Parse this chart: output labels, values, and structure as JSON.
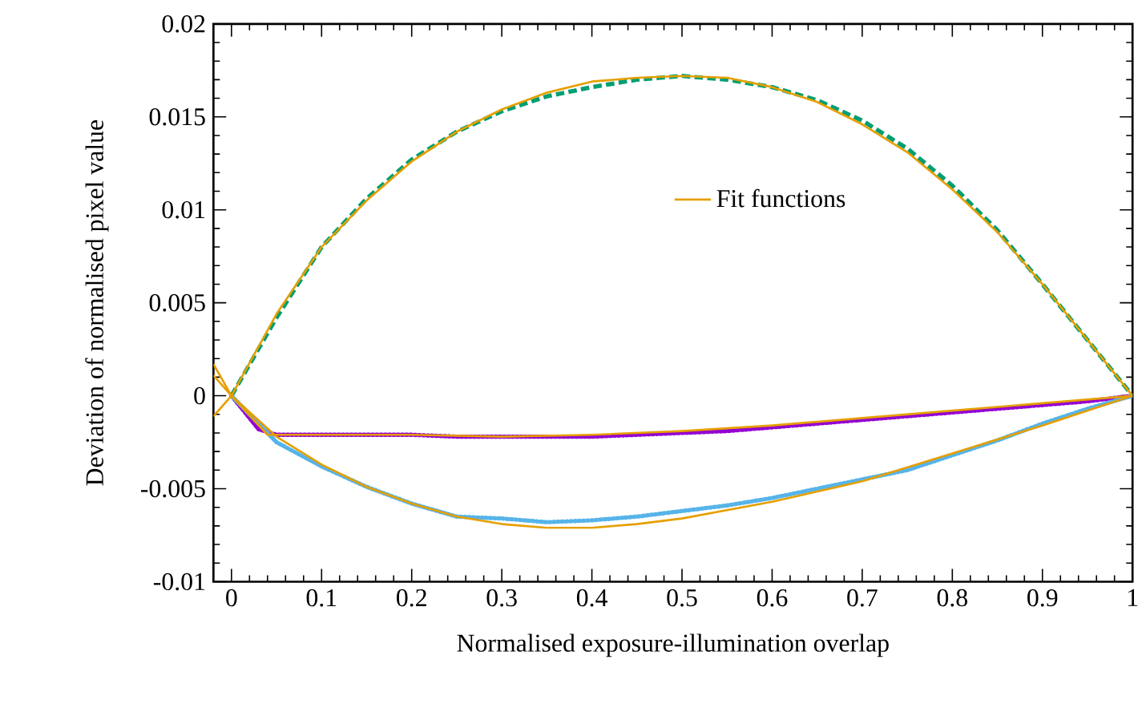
{
  "chart_data": {
    "type": "line",
    "xlabel": "Normalised exposure-illumination overlap",
    "ylabel": "Deviation of normalised pixel value",
    "xlim": [
      -0.02,
      1
    ],
    "ylim": [
      -0.01,
      0.02
    ],
    "xticks": [
      0,
      0.1,
      0.2,
      0.3,
      0.4,
      0.5,
      0.6,
      0.7,
      0.8,
      0.9,
      1
    ],
    "yticks": [
      -0.01,
      -0.005,
      0,
      0.005,
      0.01,
      0.015,
      0.02
    ],
    "grid": false,
    "legend": "right",
    "marker": "none",
    "series": [
      {
        "color": "#9400d3",
        "line_style": "dotted",
        "x": [
          0,
          0.03,
          0.05,
          0.1,
          0.15,
          0.2,
          0.25,
          0.3,
          0.35,
          0.4,
          0.45,
          0.5,
          0.55,
          0.6,
          0.65,
          0.7,
          0.75,
          0.8,
          0.85,
          0.9,
          0.95,
          1
        ],
        "values": [
          0,
          -0.0018,
          -0.0021,
          -0.0021,
          -0.0021,
          -0.0021,
          -0.0022,
          -0.0022,
          -0.0022,
          -0.0022,
          -0.0021,
          -0.002,
          -0.0019,
          -0.0017,
          -0.0015,
          -0.0013,
          -0.0011,
          -0.0009,
          -0.0007,
          -0.0005,
          -0.0003,
          0
        ]
      },
      {
        "color": "#009e73",
        "line_style": "dashed",
        "x": [
          0,
          0.05,
          0.1,
          0.15,
          0.2,
          0.25,
          0.3,
          0.35,
          0.4,
          0.45,
          0.5,
          0.55,
          0.6,
          0.65,
          0.7,
          0.75,
          0.8,
          0.85,
          0.9,
          0.95,
          1
        ],
        "values": [
          0,
          0.0042,
          0.008,
          0.0106,
          0.0127,
          0.0142,
          0.0153,
          0.0161,
          0.0166,
          0.017,
          0.0172,
          0.017,
          0.0166,
          0.0159,
          0.0148,
          0.0133,
          0.0113,
          0.0089,
          0.006,
          0.003,
          0
        ]
      },
      {
        "color": "#56b4e9",
        "line_style": "dotted",
        "x": [
          0,
          0.03,
          0.05,
          0.1,
          0.15,
          0.2,
          0.25,
          0.3,
          0.35,
          0.4,
          0.45,
          0.5,
          0.55,
          0.6,
          0.65,
          0.7,
          0.75,
          0.8,
          0.85,
          0.9,
          0.95,
          1
        ],
        "values": [
          0,
          -0.0015,
          -0.0025,
          -0.0038,
          -0.0049,
          -0.0058,
          -0.0065,
          -0.0066,
          -0.0068,
          -0.0067,
          -0.0065,
          -0.0062,
          -0.0059,
          -0.0055,
          -0.005,
          -0.0045,
          -0.004,
          -0.0032,
          -0.0024,
          -0.0015,
          -0.0007,
          0
        ]
      },
      {
        "name": "Fit functions",
        "color": "#e69f00",
        "line_style": "solid",
        "x": [
          -0.02,
          0,
          0.04,
          0.1,
          0.2,
          0.3,
          0.4,
          0.5,
          0.6,
          0.7,
          0.8,
          0.9,
          1,
          1.0
        ],
        "values": [
          0.0017,
          0,
          -0.0021,
          -0.0021,
          -0.0021,
          -0.0022,
          -0.0021,
          -0.0019,
          -0.0016,
          -0.0012,
          -0.0008,
          -0.0004,
          0,
          0
        ]
      },
      {
        "color": "#e69f00",
        "line_style": "solid",
        "x": [
          -0.02,
          0,
          0.05,
          0.1,
          0.15,
          0.2,
          0.25,
          0.3,
          0.35,
          0.4,
          0.45,
          0.5,
          0.55,
          0.6,
          0.65,
          0.7,
          0.75,
          0.8,
          0.85,
          0.9,
          0.95,
          1
        ],
        "values": [
          -0.0011,
          0,
          0.0044,
          0.008,
          0.0105,
          0.0126,
          0.0142,
          0.0154,
          0.0163,
          0.0169,
          0.0171,
          0.0172,
          0.0171,
          0.0166,
          0.0158,
          0.0146,
          0.0131,
          0.0111,
          0.0088,
          0.006,
          0.003,
          0
        ]
      },
      {
        "color": "#e69f00",
        "line_style": "solid",
        "x": [
          -0.02,
          0,
          0.05,
          0.1,
          0.15,
          0.2,
          0.25,
          0.3,
          0.35,
          0.4,
          0.45,
          0.5,
          0.6,
          0.7,
          0.8,
          0.9,
          1
        ],
        "values": [
          0.0011,
          0,
          -0.0022,
          -0.0037,
          -0.0049,
          -0.0058,
          -0.0065,
          -0.0069,
          -0.0071,
          -0.0071,
          -0.0069,
          -0.0066,
          -0.0057,
          -0.0046,
          -0.0031,
          -0.0016,
          0
        ]
      }
    ]
  }
}
